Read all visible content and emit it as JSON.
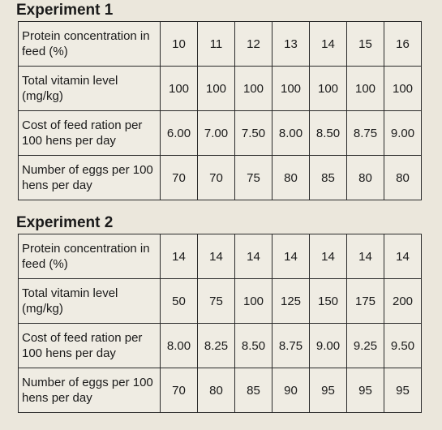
{
  "experiments": [
    {
      "title": "Experiment 1",
      "rows": [
        {
          "label": "Protein concentration in feed (%)",
          "values": [
            "10",
            "11",
            "12",
            "13",
            "14",
            "15",
            "16"
          ]
        },
        {
          "label": "Total vitamin level (mg/kg)",
          "values": [
            "100",
            "100",
            "100",
            "100",
            "100",
            "100",
            "100"
          ]
        },
        {
          "label": "Cost of feed ration per 100 hens per day",
          "values": [
            "6.00",
            "7.00",
            "7.50",
            "8.00",
            "8.50",
            "8.75",
            "9.00"
          ]
        },
        {
          "label": "Number of eggs per 100 hens per day",
          "values": [
            "70",
            "70",
            "75",
            "80",
            "85",
            "80",
            "80"
          ]
        }
      ]
    },
    {
      "title": "Experiment 2",
      "rows": [
        {
          "label": "Protein concentration in feed (%)",
          "values": [
            "14",
            "14",
            "14",
            "14",
            "14",
            "14",
            "14"
          ]
        },
        {
          "label": "Total vitamin level (mg/kg)",
          "values": [
            "50",
            "75",
            "100",
            "125",
            "150",
            "175",
            "200"
          ]
        },
        {
          "label": "Cost of feed ration per 100 hens per day",
          "values": [
            "8.00",
            "8.25",
            "8.50",
            "8.75",
            "9.00",
            "9.25",
            "9.50"
          ]
        },
        {
          "label": "Number of eggs per 100 hens per day",
          "values": [
            "70",
            "80",
            "85",
            "90",
            "95",
            "95",
            "95"
          ]
        }
      ]
    }
  ]
}
